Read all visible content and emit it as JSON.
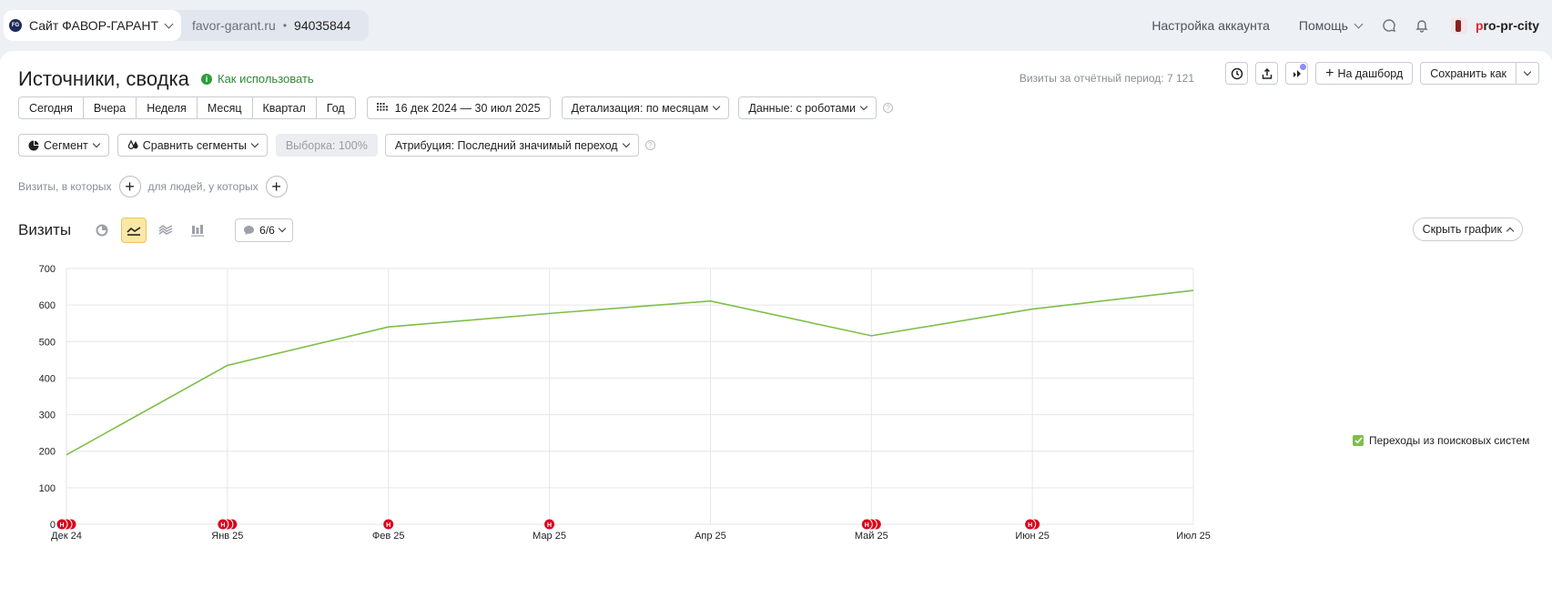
{
  "topbar": {
    "site_logo": "FG",
    "site_name": "Сайт ФАВОР-ГАРАНТ",
    "domain": "favor-garant.ru",
    "separator": "•",
    "counter_id": "94035844",
    "account_settings": "Настройка аккаунта",
    "help": "Помощь",
    "user_name_first": "p",
    "user_name_rest": "ro-pr-city"
  },
  "header": {
    "title": "Источники, сводка",
    "howto": "Как использовать",
    "visits_total": "Визиты за отчётный период: 7 121",
    "to_dashboard": "На дашборд",
    "save_as": "Сохранить как"
  },
  "periods": [
    "Сегодня",
    "Вчера",
    "Неделя",
    "Месяц",
    "Квартал",
    "Год"
  ],
  "filters": {
    "date_range": "16 дек 2024 — 30 июл 2025",
    "detail": "Детализация: по месяцам",
    "data": "Данные: с роботами",
    "segment": "Сегмент",
    "compare": "Сравнить сегменты",
    "sample": "Выборка: 100%",
    "attribution": "Атрибуция: Последний значимый переход",
    "visits_where": "Визиты, в которых",
    "people_where": "для людей, у которых"
  },
  "chart_section": {
    "title": "Визиты",
    "notes_count": "6/6",
    "hide_chart": "Скрыть график"
  },
  "colors": {
    "series": "#7dbf4a",
    "marker": "#d9041c",
    "grid": "#e6e6e6"
  },
  "chart_data": {
    "type": "line",
    "x": [
      "Дек 24",
      "Янв 25",
      "Фев 25",
      "Мар 25",
      "Апр 25",
      "Май 25",
      "Июн 25",
      "Июл 25"
    ],
    "series": [
      {
        "name": "Переходы из поисковых систем",
        "values": [
          190,
          435,
          540,
          577,
          611,
          516,
          589,
          640
        ]
      }
    ],
    "ylim": [
      0,
      700
    ],
    "yticks": [
      0,
      100,
      200,
      300,
      400,
      500,
      600,
      700
    ],
    "grid": true,
    "legend": "right",
    "markers": [
      {
        "x": "Дек 24",
        "count": 3,
        "label": "Н"
      },
      {
        "x": "Янв 25",
        "count": 3,
        "label": "Н"
      },
      {
        "x": "Фев 25",
        "count": 1,
        "label": "Н"
      },
      {
        "x": "Мар 25",
        "count": 1,
        "label": "Н"
      },
      {
        "x": "Май 25",
        "count": 3,
        "label": "Н"
      },
      {
        "x": "Июн 25",
        "count": 2,
        "label": "Н"
      }
    ]
  }
}
